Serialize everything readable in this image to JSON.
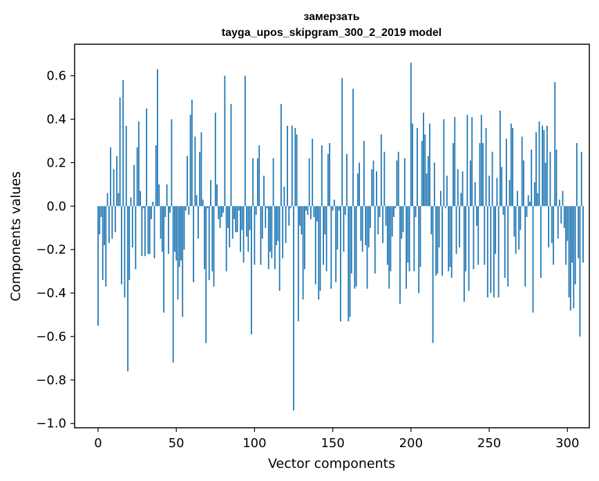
{
  "chart_data": {
    "type": "bar",
    "title": "замерзать",
    "subtitle": "tayga_upos_skipgram_300_2_2019 model",
    "xlabel": "Vector components",
    "ylabel": "Components values",
    "xlim": [
      -15,
      314
    ],
    "ylim": [
      -1.02,
      0.745
    ],
    "xticks": [
      0,
      50,
      100,
      150,
      200,
      250,
      300
    ],
    "xtick_labels": [
      "0",
      "50",
      "100",
      "150",
      "200",
      "250",
      "300"
    ],
    "yticks": [
      -1.0,
      -0.8,
      -0.6,
      -0.4,
      -0.2,
      0.0,
      0.2,
      0.4,
      0.6
    ],
    "ytick_labels": [
      "−1.0",
      "−0.8",
      "−0.6",
      "−0.4",
      "−0.2",
      "0.0",
      "0.2",
      "0.4",
      "0.6"
    ],
    "bar_color": "#1f77b4",
    "values": [
      -0.55,
      -0.13,
      -0.05,
      -0.34,
      -0.18,
      -0.37,
      0.06,
      -0.17,
      0.27,
      -0.15,
      0.17,
      -0.12,
      0.23,
      0.06,
      0.5,
      -0.36,
      0.58,
      -0.42,
      0.37,
      -0.76,
      -0.34,
      0.04,
      -0.19,
      0.19,
      -0.29,
      0.27,
      0.39,
      0.07,
      -0.23,
      -0.01,
      -0.23,
      0.45,
      -0.22,
      -0.22,
      -0.06,
      0.02,
      -0.24,
      0.28,
      0.63,
      0.1,
      -0.15,
      -0.21,
      -0.49,
      -0.05,
      0.1,
      -0.22,
      -0.03,
      0.4,
      -0.72,
      -0.21,
      -0.25,
      -0.43,
      -0.28,
      -0.25,
      -0.51,
      -0.2,
      -0.02,
      0.23,
      -0.04,
      0.42,
      0.49,
      -0.35,
      0.32,
      0.05,
      -0.15,
      0.25,
      0.34,
      0.03,
      -0.29,
      -0.63,
      -0.01,
      -0.34,
      0.12,
      -0.3,
      -0.37,
      0.43,
      0.1,
      -0.06,
      -0.1,
      -0.05,
      -0.03,
      0.6,
      -0.3,
      -0.1,
      -0.19,
      0.47,
      -0.15,
      -0.06,
      -0.12,
      -0.12,
      -0.02,
      -0.21,
      -0.11,
      -0.26,
      0.6,
      -0.14,
      -0.21,
      -0.11,
      -0.59,
      0.22,
      -0.27,
      -0.04,
      0.22,
      0.28,
      -0.27,
      -0.15,
      0.14,
      -0.1,
      -0.01,
      -0.29,
      -0.21,
      -0.24,
      0.22,
      -0.29,
      -0.18,
      -0.16,
      -0.39,
      0.47,
      -0.24,
      0.09,
      -0.17,
      0.37,
      -0.09,
      -0.01,
      0.37,
      -0.94,
      0.36,
      0.33,
      -0.53,
      -0.09,
      -0.13,
      -0.43,
      -0.29,
      -0.02,
      -0.04,
      0.22,
      -0.06,
      0.31,
      -0.05,
      -0.36,
      -0.07,
      -0.43,
      -0.39,
      0.28,
      -0.27,
      -0.13,
      -0.3,
      0.24,
      0.29,
      -0.38,
      -0.02,
      0.03,
      -0.35,
      -0.2,
      -0.02,
      -0.53,
      0.59,
      -0.21,
      -0.04,
      0.24,
      -0.53,
      -0.51,
      -0.31,
      0.54,
      -0.38,
      -0.37,
      0.15,
      0.2,
      -0.16,
      -0.21,
      0.3,
      -0.18,
      -0.38,
      -0.19,
      -0.1,
      0.17,
      0.21,
      -0.31,
      0.16,
      -0.13,
      -0.05,
      0.33,
      -0.17,
      0.25,
      -0.09,
      -0.27,
      -0.38,
      -0.3,
      -0.14,
      -0.05,
      -0.01,
      0.21,
      0.25,
      -0.45,
      -0.15,
      -0.12,
      0.22,
      -0.38,
      -0.26,
      -0.3,
      0.66,
      0.38,
      -0.3,
      -0.05,
      0.36,
      -0.4,
      -0.28,
      0.3,
      0.43,
      0.33,
      0.15,
      0.23,
      0.38,
      -0.13,
      -0.63,
      0.2,
      -0.32,
      -0.31,
      -0.19,
      0.07,
      -0.32,
      0.4,
      -0.01,
      0.14,
      -0.3,
      -0.28,
      -0.33,
      0.29,
      0.41,
      -0.22,
      0.17,
      -0.19,
      0.06,
      0.16,
      -0.44,
      -0.3,
      0.42,
      -0.39,
      0.21,
      0.41,
      -0.29,
      0.11,
      -0.09,
      -0.27,
      0.29,
      0.42,
      0.29,
      -0.27,
      0.36,
      -0.42,
      0.14,
      -0.4,
      0.25,
      -0.42,
      -0.22,
      0.13,
      -0.42,
      0.44,
      0.18,
      -0.04,
      -0.33,
      0.31,
      -0.37,
      0.12,
      0.38,
      0.36,
      -0.14,
      -0.22,
      0.07,
      -0.2,
      -0.11,
      0.32,
      0.21,
      -0.37,
      -0.05,
      0.05,
      0.02,
      0.26,
      -0.49,
      0.11,
      0.34,
      0.06,
      0.39,
      -0.33,
      0.37,
      0.35,
      0.2,
      0.37,
      -0.19,
      0.25,
      -0.17,
      -0.27,
      0.57,
      0.26,
      -0.15,
      0.03,
      -0.08,
      0.07,
      -0.1,
      -0.27,
      -0.16,
      -0.42,
      -0.48,
      -0.26,
      -0.47,
      -0.36,
      0.29,
      -0.24,
      -0.6,
      0.25,
      -0.26
    ]
  }
}
